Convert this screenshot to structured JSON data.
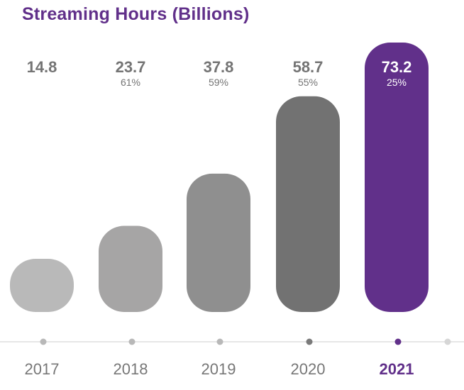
{
  "chart_data": {
    "type": "bar",
    "title": "Streaming Hours (Billions)",
    "categories": [
      "2017",
      "2018",
      "2019",
      "2020",
      "2021"
    ],
    "values": [
      14.8,
      23.7,
      37.8,
      58.7,
      73.2
    ],
    "value_labels": [
      "14.8",
      "23.7",
      "37.8",
      "58.7",
      "73.2"
    ],
    "growth_labels": [
      "",
      "61%",
      "59%",
      "55%",
      "25%"
    ],
    "highlight_index": 4,
    "xlabel": "",
    "ylabel": "",
    "ylim": [
      0,
      73.2
    ],
    "grid": false,
    "legend": "none",
    "colors": {
      "bars": [
        "#b9b9b9",
        "#a6a5a5",
        "#8f8f8f",
        "#727272",
        "#61308a"
      ],
      "value_label": "#747474",
      "highlight_label": "#ffffff",
      "title": "#61308a",
      "axis_line": "#e6e6e6",
      "axis_dot": "#b8b8b8",
      "tick_label": "#777777"
    }
  }
}
